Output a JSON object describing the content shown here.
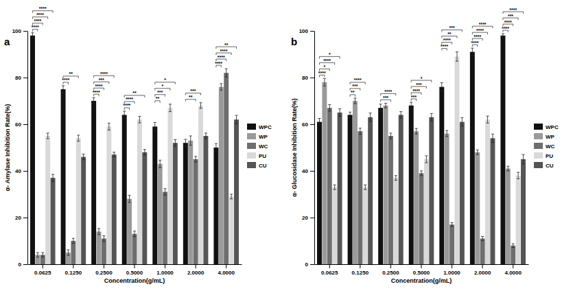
{
  "chart_data": [
    {
      "type": "bar",
      "title": "a",
      "x_label": "Concentration(g/mL)",
      "y_label": "α- Amylase Inhibition Rate(%)",
      "categories": [
        "0.0625",
        "0.1250",
        "0.2500",
        "0.5000",
        "1.0000",
        "2.0000",
        "4.0000"
      ],
      "series": [
        {
          "name": "WPC",
          "color": "#111111",
          "values": [
            98,
            75,
            70,
            64,
            59,
            52,
            50
          ],
          "errors": [
            1.2,
            1.5,
            1.4,
            1.6,
            1.8,
            1.5,
            1.7
          ]
        },
        {
          "name": "WP",
          "color": "#9a9a9a",
          "values": [
            4,
            5,
            14,
            28,
            43,
            53,
            76
          ],
          "errors": [
            1.0,
            1.2,
            1.3,
            1.5,
            1.6,
            2.0,
            1.4
          ]
        },
        {
          "name": "WC",
          "color": "#6e6e6e",
          "values": [
            4,
            10,
            11,
            13,
            31,
            45,
            82
          ],
          "errors": [
            1.0,
            1.1,
            1.2,
            1.2,
            1.4,
            1.2,
            1.8
          ]
        },
        {
          "name": "PU",
          "color": "#d9d9d9",
          "values": [
            55,
            54,
            59,
            62,
            67,
            68,
            29
          ],
          "errors": [
            1.2,
            1.3,
            1.5,
            1.4,
            1.6,
            1.2,
            1.0
          ]
        },
        {
          "name": "CU",
          "color": "#555555",
          "values": [
            37,
            46,
            47,
            48,
            52,
            55,
            62
          ],
          "errors": [
            1.5,
            1.2,
            1.0,
            1.2,
            1.4,
            1.2,
            1.8
          ]
        }
      ],
      "ylim": [
        0,
        100
      ],
      "yticks": [
        0,
        20,
        40,
        60,
        80,
        100
      ],
      "legend": "right",
      "significance": [
        {
          "category": "0.0625",
          "from": "WPC",
          "to": "WP",
          "label": "****"
        },
        {
          "category": "0.0625",
          "from": "WPC",
          "to": "WC",
          "label": "****"
        },
        {
          "category": "0.0625",
          "from": "WPC",
          "to": "PU",
          "label": "****"
        },
        {
          "category": "0.0625",
          "from": "WPC",
          "to": "CU",
          "label": "****"
        },
        {
          "category": "0.1250",
          "from": "WPC",
          "to": "WP",
          "label": "****"
        },
        {
          "category": "0.1250",
          "from": "WPC",
          "to": "PU",
          "label": "**"
        },
        {
          "category": "0.2500",
          "from": "WPC",
          "to": "WP",
          "label": "****"
        },
        {
          "category": "0.2500",
          "from": "WPC",
          "to": "WC",
          "label": "****"
        },
        {
          "category": "0.2500",
          "from": "WPC",
          "to": "PU",
          "label": "***"
        },
        {
          "category": "0.2500",
          "from": "WPC",
          "to": "CU",
          "label": "****"
        },
        {
          "category": "0.5000",
          "from": "WPC",
          "to": "WP",
          "label": "****"
        },
        {
          "category": "0.5000",
          "from": "WPC",
          "to": "WC",
          "label": "****"
        },
        {
          "category": "0.5000",
          "from": "WPC",
          "to": "CU",
          "label": "**"
        },
        {
          "category": "1.0000",
          "from": "WPC",
          "to": "WP",
          "label": "**"
        },
        {
          "category": "1.0000",
          "from": "WPC",
          "to": "WC",
          "label": "***"
        },
        {
          "category": "1.0000",
          "from": "WPC",
          "to": "PU",
          "label": "*"
        },
        {
          "category": "1.0000",
          "from": "WPC",
          "to": "CU",
          "label": "*"
        },
        {
          "category": "2.0000",
          "from": "WPC",
          "to": "WC",
          "label": "**"
        },
        {
          "category": "2.0000",
          "from": "WPC",
          "to": "PU",
          "label": "***"
        },
        {
          "category": "4.0000",
          "from": "WPC",
          "to": "WP",
          "label": "****"
        },
        {
          "category": "4.0000",
          "from": "WPC",
          "to": "WC",
          "label": "****"
        },
        {
          "category": "4.0000",
          "from": "WPC",
          "to": "PU",
          "label": "****"
        },
        {
          "category": "4.0000",
          "from": "WPC",
          "to": "CU",
          "label": "**"
        }
      ]
    },
    {
      "type": "bar",
      "title": "b",
      "x_label": "Concentration(g/mL)",
      "y_label": "α- Glucosidase Inhibition Rate(%)",
      "categories": [
        "0.0625",
        "0.1250",
        "0.2500",
        "0.5000",
        "1.0000",
        "2.0000",
        "4.0000"
      ],
      "series": [
        {
          "name": "WPC",
          "color": "#111111",
          "values": [
            61,
            64,
            67,
            68,
            76,
            91,
            98
          ],
          "errors": [
            1.5,
            1.2,
            1.6,
            1.4,
            1.8,
            1.6,
            0.8
          ]
        },
        {
          "name": "WP",
          "color": "#9a9a9a",
          "values": [
            78,
            70,
            68,
            57,
            56,
            48,
            41
          ],
          "errors": [
            1.6,
            1.2,
            1.0,
            1.2,
            1.3,
            1.0,
            1.0
          ]
        },
        {
          "name": "WC",
          "color": "#6e6e6e",
          "values": [
            67,
            57,
            55,
            39,
            17,
            11,
            8
          ],
          "errors": [
            1.4,
            1.3,
            1.2,
            1.0,
            0.8,
            0.9,
            0.8
          ]
        },
        {
          "name": "PU",
          "color": "#d9d9d9",
          "values": [
            33,
            33,
            37,
            45,
            89,
            62,
            38
          ],
          "errors": [
            1.0,
            1.0,
            1.0,
            1.5,
            2.0,
            1.5,
            1.4
          ]
        },
        {
          "name": "CU",
          "color": "#555555",
          "values": [
            65,
            63,
            64,
            63,
            61,
            54,
            45
          ],
          "errors": [
            1.6,
            1.8,
            1.4,
            1.6,
            1.8,
            1.8,
            2.0
          ]
        }
      ],
      "ylim": [
        0,
        100
      ],
      "yticks": [
        0,
        20,
        40,
        60,
        80,
        100
      ],
      "legend": "right",
      "significance": [
        {
          "category": "0.0625",
          "from": "WPC",
          "to": "WP",
          "label": "****"
        },
        {
          "category": "0.0625",
          "from": "WPC",
          "to": "WC",
          "label": "*"
        },
        {
          "category": "0.0625",
          "from": "WPC",
          "to": "PU",
          "label": "****"
        },
        {
          "category": "0.0625",
          "from": "WPC",
          "to": "CU",
          "label": "*"
        },
        {
          "category": "0.1250",
          "from": "WPC",
          "to": "WP",
          "label": "**"
        },
        {
          "category": "0.1250",
          "from": "WPC",
          "to": "WC",
          "label": "***"
        },
        {
          "category": "0.1250",
          "from": "WPC",
          "to": "PU",
          "label": "****"
        },
        {
          "category": "0.2500",
          "from": "WPC",
          "to": "WC",
          "label": "***"
        },
        {
          "category": "0.2500",
          "from": "WPC",
          "to": "PU",
          "label": "****"
        },
        {
          "category": "0.5000",
          "from": "WPC",
          "to": "WP",
          "label": "***"
        },
        {
          "category": "0.5000",
          "from": "WPC",
          "to": "WC",
          "label": "****"
        },
        {
          "category": "0.5000",
          "from": "WPC",
          "to": "PU",
          "label": "***"
        },
        {
          "category": "0.5000",
          "from": "WPC",
          "to": "CU",
          "label": "*"
        },
        {
          "category": "1.0000",
          "from": "WPC",
          "to": "WP",
          "label": "****"
        },
        {
          "category": "1.0000",
          "from": "WPC",
          "to": "WC",
          "label": "****"
        },
        {
          "category": "1.0000",
          "from": "WPC",
          "to": "PU",
          "label": "**"
        },
        {
          "category": "1.0000",
          "from": "WPC",
          "to": "CU",
          "label": "***"
        },
        {
          "category": "2.0000",
          "from": "WPC",
          "to": "WP",
          "label": "****"
        },
        {
          "category": "2.0000",
          "from": "WPC",
          "to": "WC",
          "label": "****"
        },
        {
          "category": "2.0000",
          "from": "WPC",
          "to": "PU",
          "label": "****"
        },
        {
          "category": "2.0000",
          "from": "WPC",
          "to": "CU",
          "label": "****"
        },
        {
          "category": "4.0000",
          "from": "WPC",
          "to": "WP",
          "label": "****"
        },
        {
          "category": "4.0000",
          "from": "WPC",
          "to": "WC",
          "label": "****"
        },
        {
          "category": "4.0000",
          "from": "WPC",
          "to": "PU",
          "label": "***"
        },
        {
          "category": "4.0000",
          "from": "WPC",
          "to": "CU",
          "label": "****"
        }
      ]
    }
  ]
}
